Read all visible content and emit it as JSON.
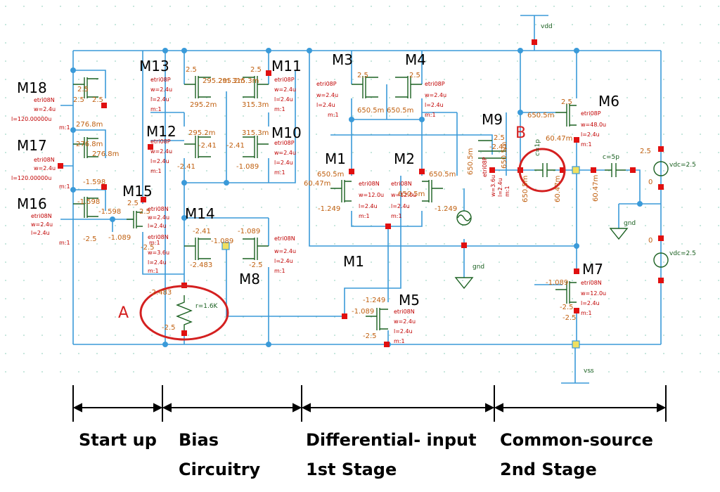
{
  "devices": [
    {
      "id": "M18",
      "label": "M18"
    },
    {
      "id": "M17",
      "label": "M17"
    },
    {
      "id": "M16",
      "label": "M16"
    },
    {
      "id": "M15",
      "label": "M15"
    },
    {
      "id": "M14",
      "label": "M14"
    },
    {
      "id": "M13",
      "label": "M13"
    },
    {
      "id": "M12",
      "label": "M12"
    },
    {
      "id": "M11",
      "label": "M11"
    },
    {
      "id": "M10",
      "label": "M10"
    },
    {
      "id": "M8",
      "label": "M8"
    },
    {
      "id": "M3",
      "label": "M3"
    },
    {
      "id": "M4",
      "label": "M4"
    },
    {
      "id": "M1a",
      "label": "M1"
    },
    {
      "id": "M2",
      "label": "M2"
    },
    {
      "id": "M1b",
      "label": "M1"
    },
    {
      "id": "M5",
      "label": "M5"
    },
    {
      "id": "M9",
      "label": "M9"
    },
    {
      "id": "M6",
      "label": "M6"
    },
    {
      "id": "M7",
      "label": "M7"
    }
  ],
  "highlights": [
    {
      "id": "A",
      "label": "A"
    },
    {
      "id": "B",
      "label": "B"
    }
  ],
  "nets": {
    "vdd": "vdd",
    "vss": "vss",
    "gnd1": "gnd",
    "gnd2": "gnd"
  },
  "sources": [
    {
      "id": "vdc1",
      "label": "vdc=2.5"
    },
    {
      "id": "vdc2",
      "label": "vdc=2.5"
    }
  ],
  "components": {
    "resistor": "r=1.6K",
    "cap_load": "c=5p",
    "cap_comp": "c=1p"
  },
  "annotations": [
    {
      "text": "2.5"
    },
    {
      "text": "2.5"
    },
    {
      "text": "276.8m"
    },
    {
      "text": "276.8m"
    },
    {
      "text": "2.5"
    },
    {
      "text": "276.8m"
    },
    {
      "text": "-1.598"
    },
    {
      "text": "-1.598"
    },
    {
      "text": "-1.598"
    },
    {
      "text": "-2.5"
    },
    {
      "text": "-1.089"
    },
    {
      "text": "2.5"
    },
    {
      "text": "2.5"
    },
    {
      "text": "-2.5"
    },
    {
      "text": "2.5"
    },
    {
      "text": "295.2m"
    },
    {
      "text": "295.2m"
    },
    {
      "text": "315.3m"
    },
    {
      "text": "2.5"
    },
    {
      "text": "295.2m"
    },
    {
      "text": "315.3m"
    },
    {
      "text": "295.2m"
    },
    {
      "text": "315.3m"
    },
    {
      "text": "-2.41"
    },
    {
      "text": "-2.41"
    },
    {
      "text": "-2.41"
    },
    {
      "text": "-1.089"
    },
    {
      "text": "-2.41"
    },
    {
      "text": "-1.089"
    },
    {
      "text": "-1.089"
    },
    {
      "text": "-2.483"
    },
    {
      "text": "-2.5"
    },
    {
      "text": "-2.483"
    },
    {
      "text": "-2.5"
    },
    {
      "text": "2.5"
    },
    {
      "text": "2.5"
    },
    {
      "text": "650.5m"
    },
    {
      "text": "650.5m"
    },
    {
      "text": "650.5m"
    },
    {
      "text": "650.5m"
    },
    {
      "text": "60.47m"
    },
    {
      "text": "-1.249"
    },
    {
      "text": "-1.249"
    },
    {
      "text": "650.5m"
    },
    {
      "text": "-1.249"
    },
    {
      "text": "-1.089"
    },
    {
      "text": "-2.5"
    },
    {
      "text": "650.5m"
    },
    {
      "text": "2.5"
    },
    {
      "text": "-2.41"
    },
    {
      "text": "650.5m"
    },
    {
      "text": "650.5m"
    },
    {
      "text": "650.5m"
    },
    {
      "text": "60.47m"
    },
    {
      "text": "60.47m"
    },
    {
      "text": "60.47m"
    },
    {
      "text": "2.5"
    },
    {
      "text": "-1.089"
    },
    {
      "text": "-2.5"
    },
    {
      "text": "-2.5"
    },
    {
      "text": "2.5"
    },
    {
      "text": "0"
    },
    {
      "text": "0"
    }
  ],
  "device_params": [
    {
      "text": "etri08N"
    },
    {
      "text": "w=2.4u"
    },
    {
      "text": "l=120.00000u"
    },
    {
      "text": "m:1"
    },
    {
      "text": "etri08N"
    },
    {
      "text": "w=2.4u"
    },
    {
      "text": "l=120.00000u"
    },
    {
      "text": "m:1"
    },
    {
      "text": "etri08N"
    },
    {
      "text": "w=2.4u"
    },
    {
      "text": "l=2.4u"
    },
    {
      "text": "m:1"
    },
    {
      "text": "etri08N"
    },
    {
      "text": "w=2.4u"
    },
    {
      "text": "l=2.4u"
    },
    {
      "text": "m:1"
    },
    {
      "text": "etri08P"
    },
    {
      "text": "w=2.4u"
    },
    {
      "text": "l=2.4u"
    },
    {
      "text": "m:1"
    },
    {
      "text": "etri08P"
    },
    {
      "text": "w=2.4u"
    },
    {
      "text": "l=2.4u"
    },
    {
      "text": "m:1"
    },
    {
      "text": "etri08P"
    },
    {
      "text": "w=2.4u"
    },
    {
      "text": "l=2.4u"
    },
    {
      "text": "m:1"
    },
    {
      "text": "etri08P"
    },
    {
      "text": "w=2.4u"
    },
    {
      "text": "l=2.4u"
    },
    {
      "text": "m:1"
    },
    {
      "text": "etri08N"
    },
    {
      "text": "w=3.6u"
    },
    {
      "text": "l=2.4u"
    },
    {
      "text": "m:1"
    },
    {
      "text": "etri08N"
    },
    {
      "text": "w=2.4u"
    },
    {
      "text": "l=2.4u"
    },
    {
      "text": "m:1"
    },
    {
      "text": "etri08P"
    },
    {
      "text": "w=2.4u"
    },
    {
      "text": "l=2.4u"
    },
    {
      "text": "m:1"
    },
    {
      "text": "etri08P"
    },
    {
      "text": "w=2.4u"
    },
    {
      "text": "l=2.4u"
    },
    {
      "text": "m:1"
    },
    {
      "text": "etri08N"
    },
    {
      "text": "w=12.0u"
    },
    {
      "text": "l=2.4u"
    },
    {
      "text": "m:1"
    },
    {
      "text": "etri08N"
    },
    {
      "text": "w=12.0u"
    },
    {
      "text": "l=2.4u"
    },
    {
      "text": "m:1"
    },
    {
      "text": "etri08N"
    },
    {
      "text": "w=2.4u"
    },
    {
      "text": "l=2.4u"
    },
    {
      "text": "m:1"
    },
    {
      "text": "etri08P"
    },
    {
      "text": "w=3.6u"
    },
    {
      "text": "l=2.4u"
    },
    {
      "text": "m:1"
    },
    {
      "text": "etri08P"
    },
    {
      "text": "w=48.0u"
    },
    {
      "text": "l=2.4u"
    },
    {
      "text": "m:1"
    },
    {
      "text": "etri08N"
    },
    {
      "text": "w=12.0u"
    },
    {
      "text": "l=2.4u"
    },
    {
      "text": "m:1"
    }
  ],
  "sections": [
    {
      "id": "startup",
      "lines": [
        "Start up"
      ]
    },
    {
      "id": "bias",
      "lines": [
        "Bias",
        "Circuitry"
      ]
    },
    {
      "id": "diff",
      "lines": [
        "Differential- input",
        "1st  Stage"
      ]
    },
    {
      "id": "cs",
      "lines": [
        "Common-source",
        "2nd  Stage"
      ]
    }
  ],
  "colors": {
    "wire": "#3a9ad9",
    "pin": "#e01010",
    "value_text": "#c06010",
    "device": "#1a6020",
    "highlight": "#d42020",
    "grid_dot": "#9fd5c5"
  }
}
